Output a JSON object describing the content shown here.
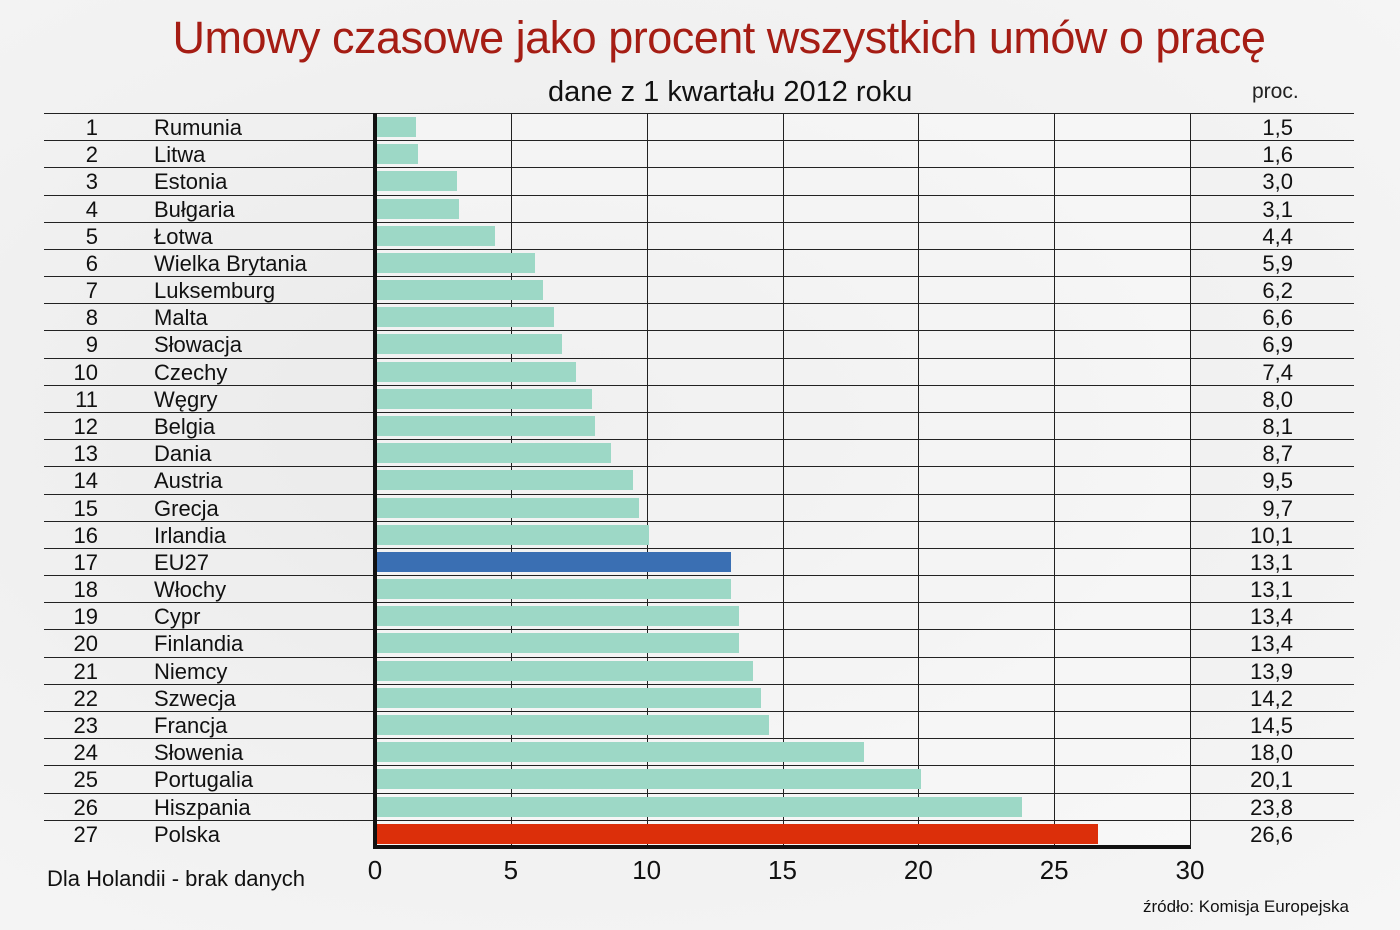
{
  "header": {
    "title": "Umowy czasowe jako procent wszystkich umów o pracę",
    "subtitle": "dane z 1 kwartału 2012 roku",
    "unit_label": "proc."
  },
  "footer": {
    "note": "Dla Holandii - brak danych",
    "source": "źródło: Komisja Europejska"
  },
  "colors": {
    "default_bar": "#9dd8c6",
    "eu_bar": "#3a6fb3",
    "highlight_bar": "#dc2f0a",
    "title": "#a51d14"
  },
  "chart_data": {
    "type": "bar",
    "orientation": "horizontal",
    "title": "Umowy czasowe jako procent wszystkich umów o pracę",
    "subtitle": "dane z 1 kwartału 2012 roku",
    "xlabel": "",
    "ylabel": "",
    "unit": "proc.",
    "xlim": [
      0,
      30
    ],
    "xticks": [
      "0",
      "5",
      "10",
      "15",
      "20",
      "25",
      "30"
    ],
    "grid": true,
    "legend": null,
    "categories": [
      "Rumunia",
      "Litwa",
      "Estonia",
      "Bułgaria",
      "Łotwa",
      "Wielka Brytania",
      "Luksemburg",
      "Malta",
      "Słowacja",
      "Czechy",
      "Węgry",
      "Belgia",
      "Dania",
      "Austria",
      "Grecja",
      "Irlandia",
      "EU27",
      "Włochy",
      "Cypr",
      "Finlandia",
      "Niemcy",
      "Szwecja",
      "Francja",
      "Słowenia",
      "Portugalia",
      "Hiszpania",
      "Polska"
    ],
    "values": [
      1.5,
      1.6,
      3.0,
      3.1,
      4.4,
      5.9,
      6.2,
      6.6,
      6.9,
      7.4,
      8.0,
      8.1,
      8.7,
      9.5,
      9.7,
      10.1,
      13.1,
      13.1,
      13.4,
      13.4,
      13.9,
      14.2,
      14.5,
      18.0,
      20.1,
      23.8,
      26.6
    ],
    "rows": [
      {
        "rank": "1",
        "name": "Rumunia",
        "value": 1.5,
        "label": "1,5",
        "kind": "default"
      },
      {
        "rank": "2",
        "name": "Litwa",
        "value": 1.6,
        "label": "1,6",
        "kind": "default"
      },
      {
        "rank": "3",
        "name": "Estonia",
        "value": 3.0,
        "label": "3,0",
        "kind": "default"
      },
      {
        "rank": "4",
        "name": "Bułgaria",
        "value": 3.1,
        "label": "3,1",
        "kind": "default"
      },
      {
        "rank": "5",
        "name": "Łotwa",
        "value": 4.4,
        "label": "4,4",
        "kind": "default"
      },
      {
        "rank": "6",
        "name": "Wielka Brytania",
        "value": 5.9,
        "label": "5,9",
        "kind": "default"
      },
      {
        "rank": "7",
        "name": "Luksemburg",
        "value": 6.2,
        "label": "6,2",
        "kind": "default"
      },
      {
        "rank": "8",
        "name": "Malta",
        "value": 6.6,
        "label": "6,6",
        "kind": "default"
      },
      {
        "rank": "9",
        "name": "Słowacja",
        "value": 6.9,
        "label": "6,9",
        "kind": "default"
      },
      {
        "rank": "10",
        "name": "Czechy",
        "value": 7.4,
        "label": "7,4",
        "kind": "default"
      },
      {
        "rank": "11",
        "name": "Węgry",
        "value": 8.0,
        "label": "8,0",
        "kind": "default"
      },
      {
        "rank": "12",
        "name": "Belgia",
        "value": 8.1,
        "label": "8,1",
        "kind": "default"
      },
      {
        "rank": "13",
        "name": "Dania",
        "value": 8.7,
        "label": "8,7",
        "kind": "default"
      },
      {
        "rank": "14",
        "name": "Austria",
        "value": 9.5,
        "label": "9,5",
        "kind": "default"
      },
      {
        "rank": "15",
        "name": "Grecja",
        "value": 9.7,
        "label": "9,7",
        "kind": "default"
      },
      {
        "rank": "16",
        "name": "Irlandia",
        "value": 10.1,
        "label": "10,1",
        "kind": "default"
      },
      {
        "rank": "17",
        "name": "EU27",
        "value": 13.1,
        "label": "13,1",
        "kind": "eu"
      },
      {
        "rank": "18",
        "name": "Włochy",
        "value": 13.1,
        "label": "13,1",
        "kind": "default"
      },
      {
        "rank": "19",
        "name": "Cypr",
        "value": 13.4,
        "label": "13,4",
        "kind": "default"
      },
      {
        "rank": "20",
        "name": "Finlandia",
        "value": 13.4,
        "label": "13,4",
        "kind": "default"
      },
      {
        "rank": "21",
        "name": "Niemcy",
        "value": 13.9,
        "label": "13,9",
        "kind": "default"
      },
      {
        "rank": "22",
        "name": "Szwecja",
        "value": 14.2,
        "label": "14,2",
        "kind": "default"
      },
      {
        "rank": "23",
        "name": "Francja",
        "value": 14.5,
        "label": "14,5",
        "kind": "default"
      },
      {
        "rank": "24",
        "name": "Słowenia",
        "value": 18.0,
        "label": "18,0",
        "kind": "default"
      },
      {
        "rank": "25",
        "name": "Portugalia",
        "value": 20.1,
        "label": "20,1",
        "kind": "default"
      },
      {
        "rank": "26",
        "name": "Hiszpania",
        "value": 23.8,
        "label": "23,8",
        "kind": "default"
      },
      {
        "rank": "27",
        "name": "Polska",
        "value": 26.6,
        "label": "26,6",
        "kind": "highlight"
      }
    ],
    "annotations": [
      "Dla Holandii - brak danych",
      "źródło: Komisja Europejska"
    ]
  }
}
